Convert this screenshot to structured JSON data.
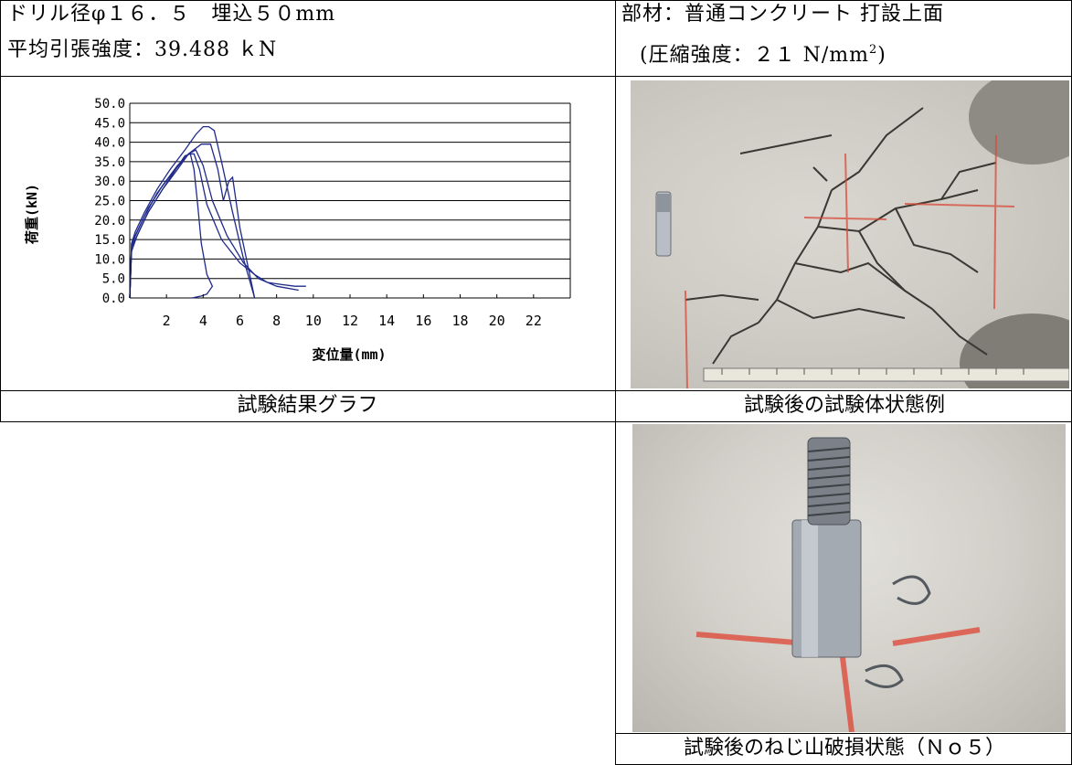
{
  "header": {
    "drill_spec": "ドリル径φ１６．５　埋込５０mm",
    "avg_tensile": "平均引張強度：39.488 ｋN",
    "member": "部材：普通コンクリート 打設上面",
    "compressive_prefix": "(圧縮強度：２１ N/mm",
    "compressive_sup": "2",
    "compressive_suffix": ")"
  },
  "captions": {
    "graph": "試験結果グラフ",
    "specimen": "試験後の試験体状態例",
    "thread": "試験後のねじ山破損状態（Ｎｏ５）"
  },
  "chart_data": {
    "type": "line",
    "xlabel": "変位量(mm)",
    "ylabel": "荷重(kN)",
    "xlim": [
      0,
      24
    ],
    "ylim": [
      0,
      50
    ],
    "x_ticks": [
      2,
      4,
      6,
      8,
      10,
      12,
      14,
      16,
      18,
      20,
      22
    ],
    "y_ticks": [
      "0.0",
      "5.0",
      "10.0",
      "15.0",
      "20.0",
      "25.0",
      "30.0",
      "35.0",
      "40.0",
      "45.0",
      "50.0"
    ],
    "series_color": "#1f2a8a",
    "series": [
      {
        "x": [
          0,
          0.1,
          0.3,
          0.8,
          1.5,
          2.2,
          3.0,
          3.6,
          4.0,
          4.3,
          4.6,
          5.0,
          5.6,
          6.2,
          6.8
        ],
        "y": [
          0,
          14,
          17,
          22,
          28,
          33,
          38,
          42,
          44,
          44,
          43,
          35,
          22,
          10,
          0
        ]
      },
      {
        "x": [
          0,
          0.1,
          0.3,
          0.8,
          1.5,
          2.3,
          3.2,
          3.9,
          4.4,
          4.8,
          5.1,
          5.4,
          5.6,
          6.0,
          6.8
        ],
        "y": [
          0,
          13,
          16,
          21,
          27,
          32,
          37,
          39.5,
          39.5,
          33,
          25,
          30,
          31,
          18,
          0
        ]
      },
      {
        "x": [
          0,
          0.1,
          0.4,
          1.0,
          1.8,
          2.6,
          3.2,
          3.5,
          3.8,
          4.2,
          5.0,
          6.0,
          6.8,
          7.5,
          8.2,
          9.0,
          9.6
        ],
        "y": [
          0,
          14,
          17,
          23,
          29,
          34,
          37,
          37,
          33,
          24,
          15,
          9,
          6,
          4,
          3.5,
          3,
          3
        ]
      },
      {
        "x": [
          0,
          0.1,
          0.4,
          1.0,
          1.8,
          2.6,
          3.2,
          3.6,
          4.0,
          4.5,
          5.3,
          6.2,
          7.0,
          8.0,
          9.2
        ],
        "y": [
          0,
          13,
          16,
          22,
          28,
          33,
          37,
          38,
          34,
          25,
          16,
          9,
          5,
          3,
          2
        ]
      },
      {
        "x": [
          0,
          0.1,
          0.4,
          1.0,
          1.8,
          2.5,
          3.0,
          3.3,
          3.5,
          3.7,
          3.9,
          4.2,
          4.5,
          4.2,
          3.9,
          3.6,
          3.4
        ],
        "y": [
          0,
          12,
          16,
          22,
          28,
          33,
          36.5,
          37,
          33,
          24,
          14,
          6,
          3,
          1,
          0.5,
          0.2,
          0
        ]
      }
    ]
  }
}
